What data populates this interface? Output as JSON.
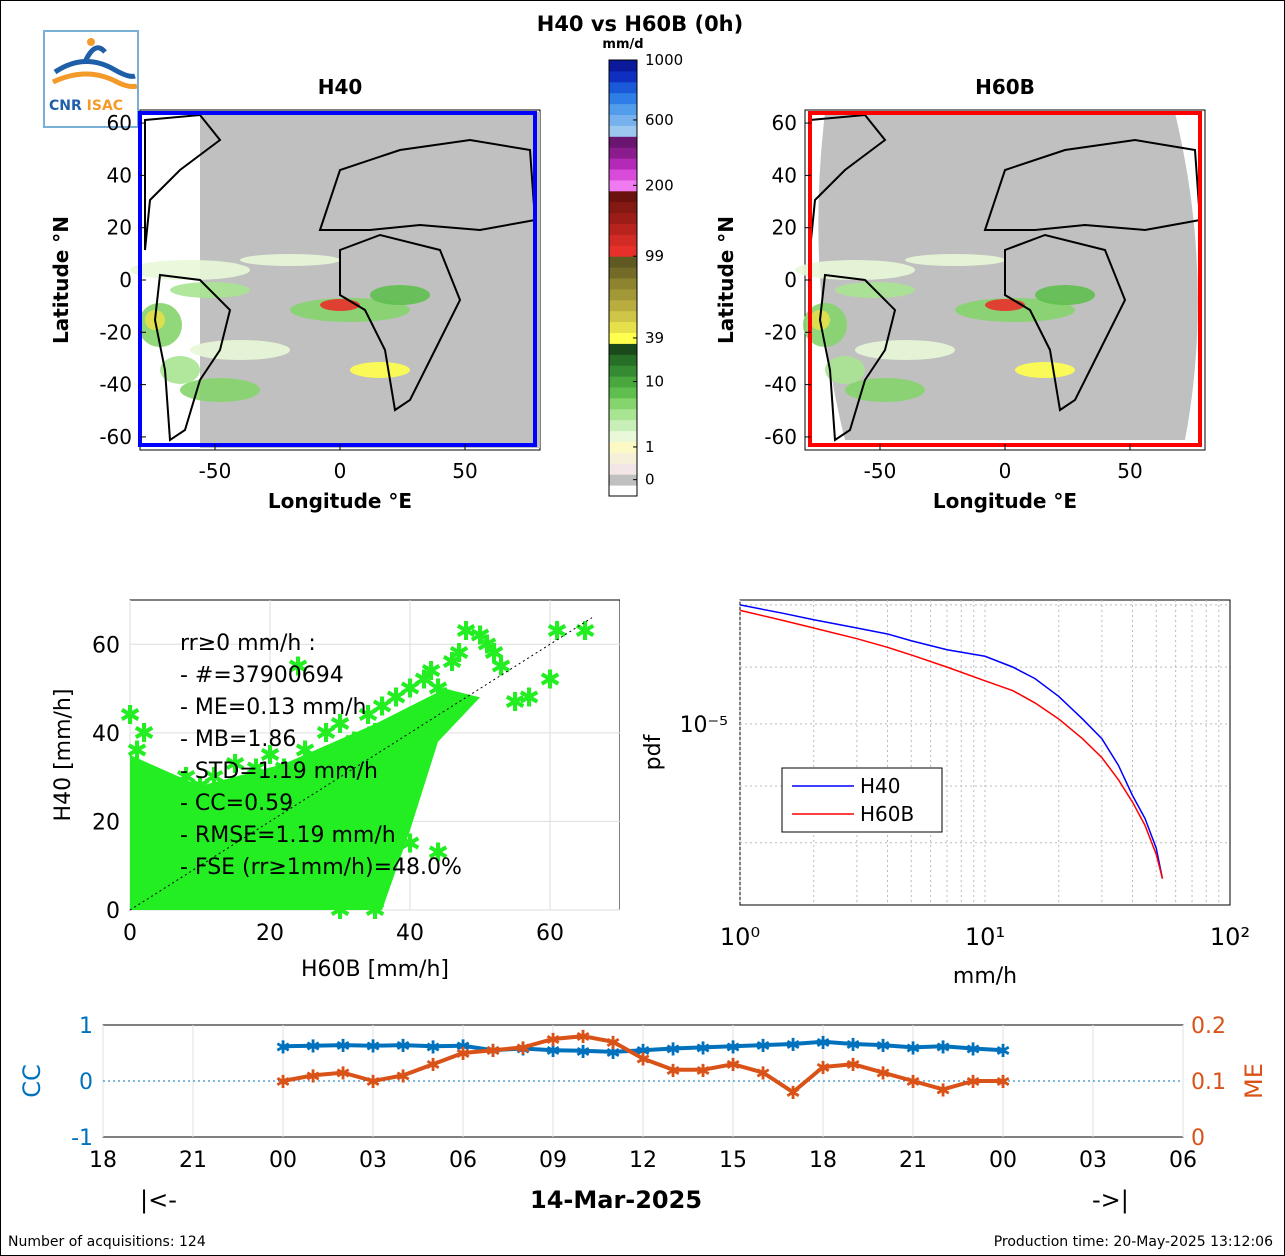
{
  "page": {
    "title": "H40 vs H60B (0h)",
    "footer_left": "Number of acquisitions: 124",
    "footer_right": "Production time: 20-May-2025 13:12:06",
    "nav_prev": "|<-",
    "nav_next": "->|",
    "date": "14-Mar-2025"
  },
  "logo": {
    "text_a": "CNR",
    "text_b": "ISAC",
    "color_a": "#1f5fa8",
    "color_b": "#f39a2b"
  },
  "colorbar": {
    "unit": "mm/d",
    "tick_labels": [
      "0",
      "1",
      "10",
      "39",
      "99",
      "200",
      "600",
      "1000"
    ],
    "colors": [
      "#ffffff",
      "#c0c0c0",
      "#f2e6e6",
      "#f6f0d8",
      "#fdf9c4",
      "#e8f8d8",
      "#c8efb8",
      "#a8e492",
      "#85d46d",
      "#5fbf4e",
      "#48a83d",
      "#358b31",
      "#276f27",
      "#1a4a1a",
      "#ffff4d",
      "#e6e04a",
      "#cfc546",
      "#b9ad40",
      "#a39838",
      "#8e8430",
      "#746b28",
      "#5f5a22",
      "#e8302a",
      "#d22a24",
      "#b8231e",
      "#9c1d18",
      "#841813",
      "#6c120e",
      "#f07af0",
      "#d94bd9",
      "#b22ab5",
      "#8a1c8e",
      "#6a1570",
      "#9cc8f0",
      "#78b2ee",
      "#529cec",
      "#2f7ee8",
      "#1a5ad8",
      "#0f2fc0",
      "#0a1a9a"
    ]
  },
  "maps": [
    {
      "title": "H40",
      "xlabel": "Longitude °E",
      "ylabel": "Latitude °N",
      "xticks": [
        "-50",
        "0",
        "50"
      ],
      "yticks": [
        "60",
        "40",
        "20",
        "0",
        "-20",
        "-40",
        "-60"
      ],
      "box_color": "#0000ff"
    },
    {
      "title": "H60B",
      "xlabel": "Longitude °E",
      "ylabel": "Latitude °N",
      "xticks": [
        "-50",
        "0",
        "50"
      ],
      "yticks": [
        "60",
        "40",
        "20",
        "0",
        "-20",
        "-40",
        "-60"
      ],
      "box_color": "#ff0000"
    }
  ],
  "scatter": {
    "xlabel": "H60B [mm/h]",
    "ylabel": "H40 [mm/h]",
    "xticks": [
      "0",
      "20",
      "40",
      "60"
    ],
    "yticks": [
      "0",
      "20",
      "40",
      "60"
    ],
    "stats": [
      "rr≥0 mm/h :",
      "- #=37900694",
      "- ME=0.13 mm/h",
      "- MB=1.86",
      "- STD=1.19 mm/h",
      "- CC=0.59",
      "- RMSE=1.19 mm/h",
      "- FSE (rr≥1mm/h)=48.0%"
    ]
  },
  "pdf_plot": {
    "xlabel": "mm/h",
    "ylabel": "pdf",
    "xticks": [
      "10⁰",
      "10¹",
      "10²"
    ],
    "ytick": "10⁻⁵",
    "legend": [
      "H40",
      "H60B"
    ]
  },
  "timeseries": {
    "ylabel_left": "CC",
    "ylabel_right": "ME",
    "left_ticks": [
      "1",
      "0",
      "-1"
    ],
    "right_ticks": [
      "0.2",
      "0.1",
      "0"
    ],
    "xticks": [
      "18",
      "21",
      "00",
      "03",
      "06",
      "09",
      "12",
      "15",
      "18",
      "21",
      "00",
      "03",
      "06"
    ]
  },
  "chart_data": [
    {
      "type": "scatter",
      "name": "scatter-h60b-h40",
      "xlabel": "H60B [mm/h]",
      "ylabel": "H40 [mm/h]",
      "xlim": [
        0,
        70
      ],
      "ylim": [
        0,
        70
      ],
      "points": [
        [
          0,
          44
        ],
        [
          1,
          36
        ],
        [
          2,
          40
        ],
        [
          5,
          25
        ],
        [
          8,
          30
        ],
        [
          10,
          28
        ],
        [
          12,
          30
        ],
        [
          15,
          33
        ],
        [
          18,
          32
        ],
        [
          20,
          35
        ],
        [
          22,
          32
        ],
        [
          24,
          55
        ],
        [
          25,
          36
        ],
        [
          28,
          40
        ],
        [
          30,
          42
        ],
        [
          32,
          38
        ],
        [
          34,
          44
        ],
        [
          35,
          40
        ],
        [
          36,
          46
        ],
        [
          38,
          48
        ],
        [
          40,
          50
        ],
        [
          42,
          52
        ],
        [
          43,
          54
        ],
        [
          44,
          50
        ],
        [
          45,
          48
        ],
        [
          46,
          56
        ],
        [
          47,
          58
        ],
        [
          48,
          63
        ],
        [
          50,
          62
        ],
        [
          51,
          60
        ],
        [
          52,
          58
        ],
        [
          53,
          55
        ],
        [
          55,
          47
        ],
        [
          57,
          48
        ],
        [
          60,
          52
        ],
        [
          61,
          63
        ],
        [
          65,
          63
        ],
        [
          30,
          0
        ],
        [
          35,
          0
        ],
        [
          38,
          20
        ],
        [
          40,
          15
        ],
        [
          44,
          13
        ],
        [
          32,
          6
        ],
        [
          28,
          4
        ]
      ],
      "grid": true
    },
    {
      "type": "line",
      "name": "pdf",
      "xscale": "log",
      "xlim": [
        1,
        100
      ],
      "series": [
        {
          "name": "H40",
          "x": [
            1,
            1.5,
            2,
            3,
            4,
            5,
            7,
            10,
            13,
            16,
            20,
            25,
            30,
            35,
            40,
            45,
            50,
            53
          ],
          "y": [
            0.0001,
            8.5e-05,
            7.5e-05,
            6.4e-05,
            5.7e-05,
            5e-05,
            4.2e-05,
            3.7e-05,
            3e-05,
            2.4e-05,
            1.7e-05,
            1.1e-05,
            7.5e-06,
            4.5e-06,
            2.5e-06,
            1.6e-06,
            9e-07,
            5e-07
          ]
        },
        {
          "name": "H60B",
          "x": [
            1,
            1.5,
            2,
            3,
            4,
            5,
            7,
            10,
            13,
            16,
            20,
            25,
            30,
            35,
            40,
            45,
            50,
            53
          ],
          "y": [
            9e-05,
            7.4e-05,
            6.4e-05,
            5.2e-05,
            4.4e-05,
            3.8e-05,
            3e-05,
            2.3e-05,
            1.9e-05,
            1.5e-05,
            1.1e-05,
            7.5e-06,
            5.2e-06,
            3.4e-06,
            2.2e-06,
            1.4e-06,
            8e-07,
            5e-07
          ]
        }
      ],
      "grid": true,
      "legend": "center-left"
    },
    {
      "type": "line",
      "name": "timeseries",
      "x_hours": [
        24,
        25,
        26,
        27,
        28,
        29,
        30,
        31,
        32,
        33,
        34,
        35,
        36,
        37,
        38,
        39,
        40,
        41,
        42,
        43,
        44,
        45,
        46,
        47,
        48
      ],
      "series": [
        {
          "name": "CC",
          "axis": "left",
          "color": "#0072bd",
          "y": [
            0.62,
            0.63,
            0.64,
            0.63,
            0.64,
            0.62,
            0.63,
            0.55,
            0.58,
            0.55,
            0.54,
            0.52,
            0.55,
            0.58,
            0.6,
            0.62,
            0.64,
            0.66,
            0.7,
            0.66,
            0.64,
            0.6,
            0.62,
            0.58,
            0.55
          ]
        },
        {
          "name": "ME",
          "axis": "right",
          "color": "#d95319",
          "y": [
            0.1,
            0.11,
            0.115,
            0.1,
            0.11,
            0.13,
            0.15,
            0.155,
            0.16,
            0.175,
            0.18,
            0.17,
            0.14,
            0.12,
            0.12,
            0.13,
            0.115,
            0.08,
            0.125,
            0.13,
            0.115,
            0.1,
            0.085,
            0.1,
            0.1
          ]
        }
      ],
      "left_ylim": [
        -1,
        1
      ],
      "right_ylim": [
        0,
        0.2
      ],
      "grid": true
    }
  ]
}
